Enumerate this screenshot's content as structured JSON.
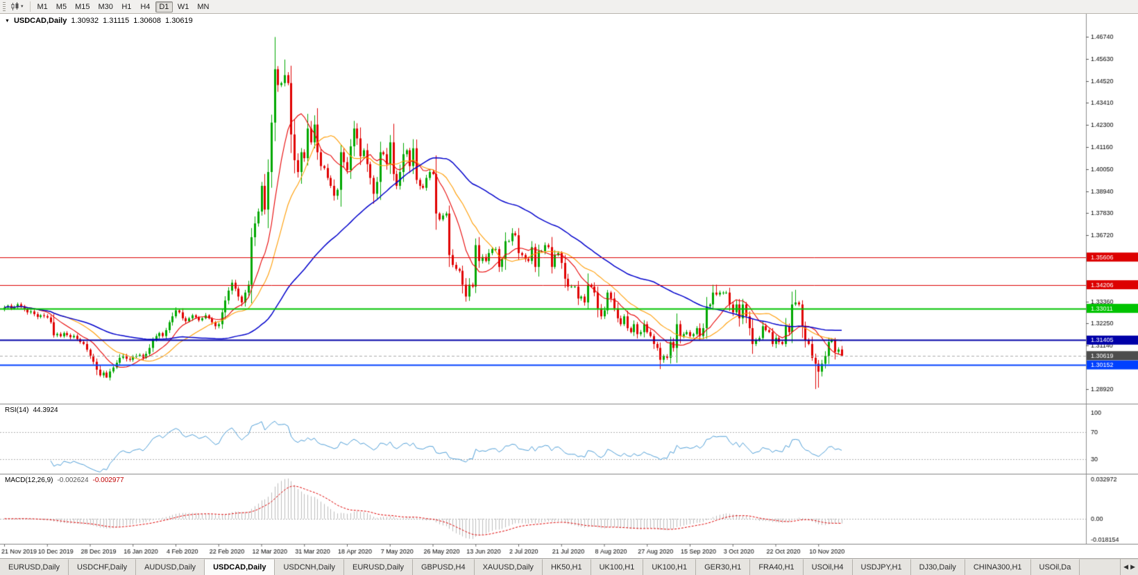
{
  "toolbar": {
    "dropdown_caret": "▾",
    "timeframes": [
      {
        "label": "M1"
      },
      {
        "label": "M5"
      },
      {
        "label": "M15"
      },
      {
        "label": "M30"
      },
      {
        "label": "H1"
      },
      {
        "label": "H4"
      },
      {
        "label": "D1",
        "active": true
      },
      {
        "label": "W1"
      },
      {
        "label": "MN"
      }
    ]
  },
  "chart_header": {
    "collapse_icon": "▼",
    "symbol": "USDCAD,Daily",
    "open": "1.30932",
    "high": "1.31115",
    "low": "1.30608",
    "close": "1.30619"
  },
  "chart_data": {
    "type": "candlestick",
    "symbol": "USDCAD",
    "timeframe": "Daily",
    "last_ohlc": {
      "open": 1.30932,
      "high": 1.31115,
      "low": 1.30608,
      "close": 1.30619
    },
    "ylim": [
      1.284,
      1.477
    ],
    "bar_step": 4.75,
    "first_bar_x": 5,
    "first_open": 1.3295,
    "candle_colors": {
      "up": "#00a800",
      "down": "#e00000"
    },
    "closes": [
      1.3305,
      1.3315,
      1.33,
      1.3308,
      1.3322,
      1.3312,
      1.3296,
      1.3281,
      1.3286,
      1.3272,
      1.3258,
      1.3266,
      1.3262,
      1.3255,
      1.3231,
      1.3165,
      1.3172,
      1.316,
      1.3176,
      1.3166,
      1.3155,
      1.3162,
      1.3146,
      1.3131,
      1.3121,
      1.3092,
      1.3062,
      1.3031,
      1.2991,
      1.2962,
      1.2976,
      1.2951,
      1.2982,
      1.3002,
      1.3026,
      1.3051,
      1.3062,
      1.3046,
      1.3041,
      1.3056,
      1.3061,
      1.3066,
      1.3051,
      1.3071,
      1.3101,
      1.3141,
      1.3161,
      1.3176,
      1.3161,
      1.3191,
      1.3231,
      1.3261,
      1.3291,
      1.3281,
      1.3251,
      1.3236,
      1.3251,
      1.3266,
      1.3256,
      1.3241,
      1.3251,
      1.3266,
      1.3251,
      1.3231,
      1.3211,
      1.3221,
      1.3281,
      1.3341,
      1.3391,
      1.3431,
      1.3401,
      1.3361,
      1.3331,
      1.3381,
      1.3421,
      1.3661,
      1.3731,
      1.3791,
      1.3921,
      1.3801,
      1.3991,
      1.4241,
      1.4511,
      1.4431,
      1.4441,
      1.4481,
      1.4441,
      1.4181,
      1.4051,
      1.3991,
      1.4091,
      1.4061,
      1.4211,
      1.4141,
      1.4231,
      1.4091,
      1.4021,
      1.4011,
      1.3961,
      1.3921,
      1.3871,
      1.3901,
      1.4091,
      1.4041,
      1.4001,
      1.4121,
      1.4211,
      1.4161,
      1.4071,
      1.4101,
      1.4031,
      1.3961,
      1.3881,
      1.3941,
      1.4091,
      1.4081,
      1.4031,
      1.4141,
      1.3981,
      1.3921,
      1.3991,
      1.4081,
      1.4101,
      1.4021,
      1.4111,
      1.3951,
      1.3921,
      1.3911,
      1.3961,
      1.3991,
      1.3981,
      1.3781,
      1.3751,
      1.3771,
      1.3781,
      1.3571,
      1.3521,
      1.3501,
      1.3491,
      1.3421,
      1.3361,
      1.3421,
      1.3411,
      1.3621,
      1.3541,
      1.3561,
      1.3541,
      1.3581,
      1.3601,
      1.3601,
      1.3511,
      1.3551,
      1.3641,
      1.3641,
      1.3681,
      1.3671,
      1.3581,
      1.3571,
      1.3551,
      1.3541,
      1.3611,
      1.3511,
      1.3591,
      1.3591,
      1.3621,
      1.3611,
      1.3511,
      1.3571,
      1.3581,
      1.3531,
      1.3451,
      1.3411,
      1.3411,
      1.3411,
      1.3351,
      1.3361,
      1.3331,
      1.3421,
      1.3411,
      1.3381,
      1.3301,
      1.3261,
      1.3291,
      1.3381,
      1.3351,
      1.3301,
      1.3251,
      1.3221,
      1.3261,
      1.3201,
      1.3181,
      1.3221,
      1.3171,
      1.3181,
      1.3221,
      1.3181,
      1.3161,
      1.3121,
      1.3101,
      1.3041,
      1.3061,
      1.3051,
      1.3131,
      1.3101,
      1.3221,
      1.3161,
      1.3171,
      1.3181,
      1.3161,
      1.3171,
      1.3201,
      1.3161,
      1.3201,
      1.3311,
      1.3321,
      1.3381,
      1.3371,
      1.3381,
      1.3381,
      1.3381,
      1.3321,
      1.3281,
      1.3321,
      1.3251,
      1.3321,
      1.3261,
      1.3201,
      1.3121,
      1.3141,
      1.3151,
      1.3211,
      1.3191,
      1.3181,
      1.3121,
      1.3151,
      1.3131,
      1.3121,
      1.3211,
      1.3181,
      1.3321,
      1.3331,
      1.3321,
      1.3211,
      1.3141,
      1.3121,
      1.3051,
      1.3021,
      1.2981,
      1.3021,
      1.3061,
      1.3131,
      1.3141,
      1.3081,
      1.30932,
      1.30619
    ],
    "extremes": [
      {
        "i": 31,
        "l": 1.295
      },
      {
        "i": 82,
        "h": 1.4674
      },
      {
        "i": 85,
        "h": 1.456
      },
      {
        "i": 199,
        "l": 1.2994
      },
      {
        "i": 216,
        "h": 1.3421
      },
      {
        "i": 240,
        "h": 1.3395
      },
      {
        "i": 246,
        "l": 1.2893
      },
      {
        "i": 247,
        "l": 1.29
      },
      {
        "i": 254,
        "h": 1.31115,
        "l": 1.30608
      }
    ],
    "y_ticks": [
      1.4674,
      1.4563,
      1.4452,
      1.4341,
      1.423,
      1.4116,
      1.4005,
      1.3894,
      1.3783,
      1.3672,
      1.3336,
      1.3225,
      1.3114,
      1.2892
    ],
    "hlines": [
      {
        "price": 1.35606,
        "color": "#dd0000",
        "width": 1
      },
      {
        "price": 1.34206,
        "color": "#dd0000",
        "width": 1
      },
      {
        "price": 1.33011,
        "color": "#00c300",
        "width": 2
      },
      {
        "price": 1.31405,
        "color": "#0000a8",
        "width": 2
      },
      {
        "price": 1.30152,
        "color": "#0040ff",
        "width": 2
      }
    ],
    "current_price": {
      "value": 1.30619,
      "badge_color": "#4d4d4d",
      "line_color": "#aaaaaa"
    },
    "moving_averages": [
      {
        "period": 10,
        "color": "#e80000",
        "width": 1.1
      },
      {
        "period": 20,
        "color": "#ff9c00",
        "width": 1.1
      },
      {
        "period": 55,
        "color": "#0000cc",
        "width": 1.5
      }
    ],
    "date_ticks": [
      {
        "i": 0,
        "label": "21 Nov 2019"
      },
      {
        "i": 13,
        "label": "10 Dec 2019"
      },
      {
        "i": 26,
        "label": "28 Dec 2019"
      },
      {
        "i": 39,
        "label": "16 Jan 2020"
      },
      {
        "i": 52,
        "label": "4 Feb 2020"
      },
      {
        "i": 65,
        "label": "22 Feb 2020"
      },
      {
        "i": 78,
        "label": "12 Mar 2020"
      },
      {
        "i": 91,
        "label": "31 Mar 2020"
      },
      {
        "i": 104,
        "label": "18 Apr 2020"
      },
      {
        "i": 117,
        "label": "7 May 2020"
      },
      {
        "i": 130,
        "label": "26 May 2020"
      },
      {
        "i": 143,
        "label": "13 Jun 2020"
      },
      {
        "i": 156,
        "label": "2 Jul 2020"
      },
      {
        "i": 169,
        "label": "21 Jul 2020"
      },
      {
        "i": 182,
        "label": "8 Aug 2020"
      },
      {
        "i": 195,
        "label": "27 Aug 2020"
      },
      {
        "i": 208,
        "label": "15 Sep 2020"
      },
      {
        "i": 221,
        "label": "3 Oct 2020"
      },
      {
        "i": 234,
        "label": "22 Oct 2020"
      },
      {
        "i": 247,
        "label": "10 Nov 2020"
      }
    ]
  },
  "rsi_panel": {
    "label": "RSI(14)",
    "value": "44.3924",
    "period": 14,
    "levels": [
      30,
      70
    ],
    "axis_labels": [
      "100",
      "70",
      "30"
    ],
    "scale": [
      10,
      110
    ],
    "line_color": "#4f9fd8"
  },
  "macd_panel": {
    "label": "MACD(12,26,9)",
    "main_value": "-0.002624",
    "signal_value": "-0.002977",
    "fast": 12,
    "slow": 26,
    "signal": 9,
    "ylim": [
      -0.0185,
      0.0335
    ],
    "axis_labels": [
      "0.032972",
      "0.00",
      "-0.018154"
    ],
    "histogram_color": "#bdbdbd",
    "signal_color": "#e00000"
  },
  "tab_bar": {
    "scroll_left": "◀",
    "scroll_right": "▶",
    "tabs": [
      {
        "label": "EURUSD,Daily"
      },
      {
        "label": "USDCHF,Daily"
      },
      {
        "label": "AUDUSD,Daily"
      },
      {
        "label": "USDCAD,Daily",
        "active": true
      },
      {
        "label": "USDCNH,Daily"
      },
      {
        "label": "EURUSD,Daily"
      },
      {
        "label": "GBPUSD,H4"
      },
      {
        "label": "XAUUSD,Daily"
      },
      {
        "label": "HK50,H1"
      },
      {
        "label": "UK100,H1"
      },
      {
        "label": "UK100,H1"
      },
      {
        "label": "GER30,H1"
      },
      {
        "label": "FRA40,H1"
      },
      {
        "label": "USOil,H4"
      },
      {
        "label": "USDJPY,H1"
      },
      {
        "label": "DJ30,Daily"
      },
      {
        "label": "CHINA300,H1"
      },
      {
        "label": "USOil,Da"
      }
    ]
  }
}
